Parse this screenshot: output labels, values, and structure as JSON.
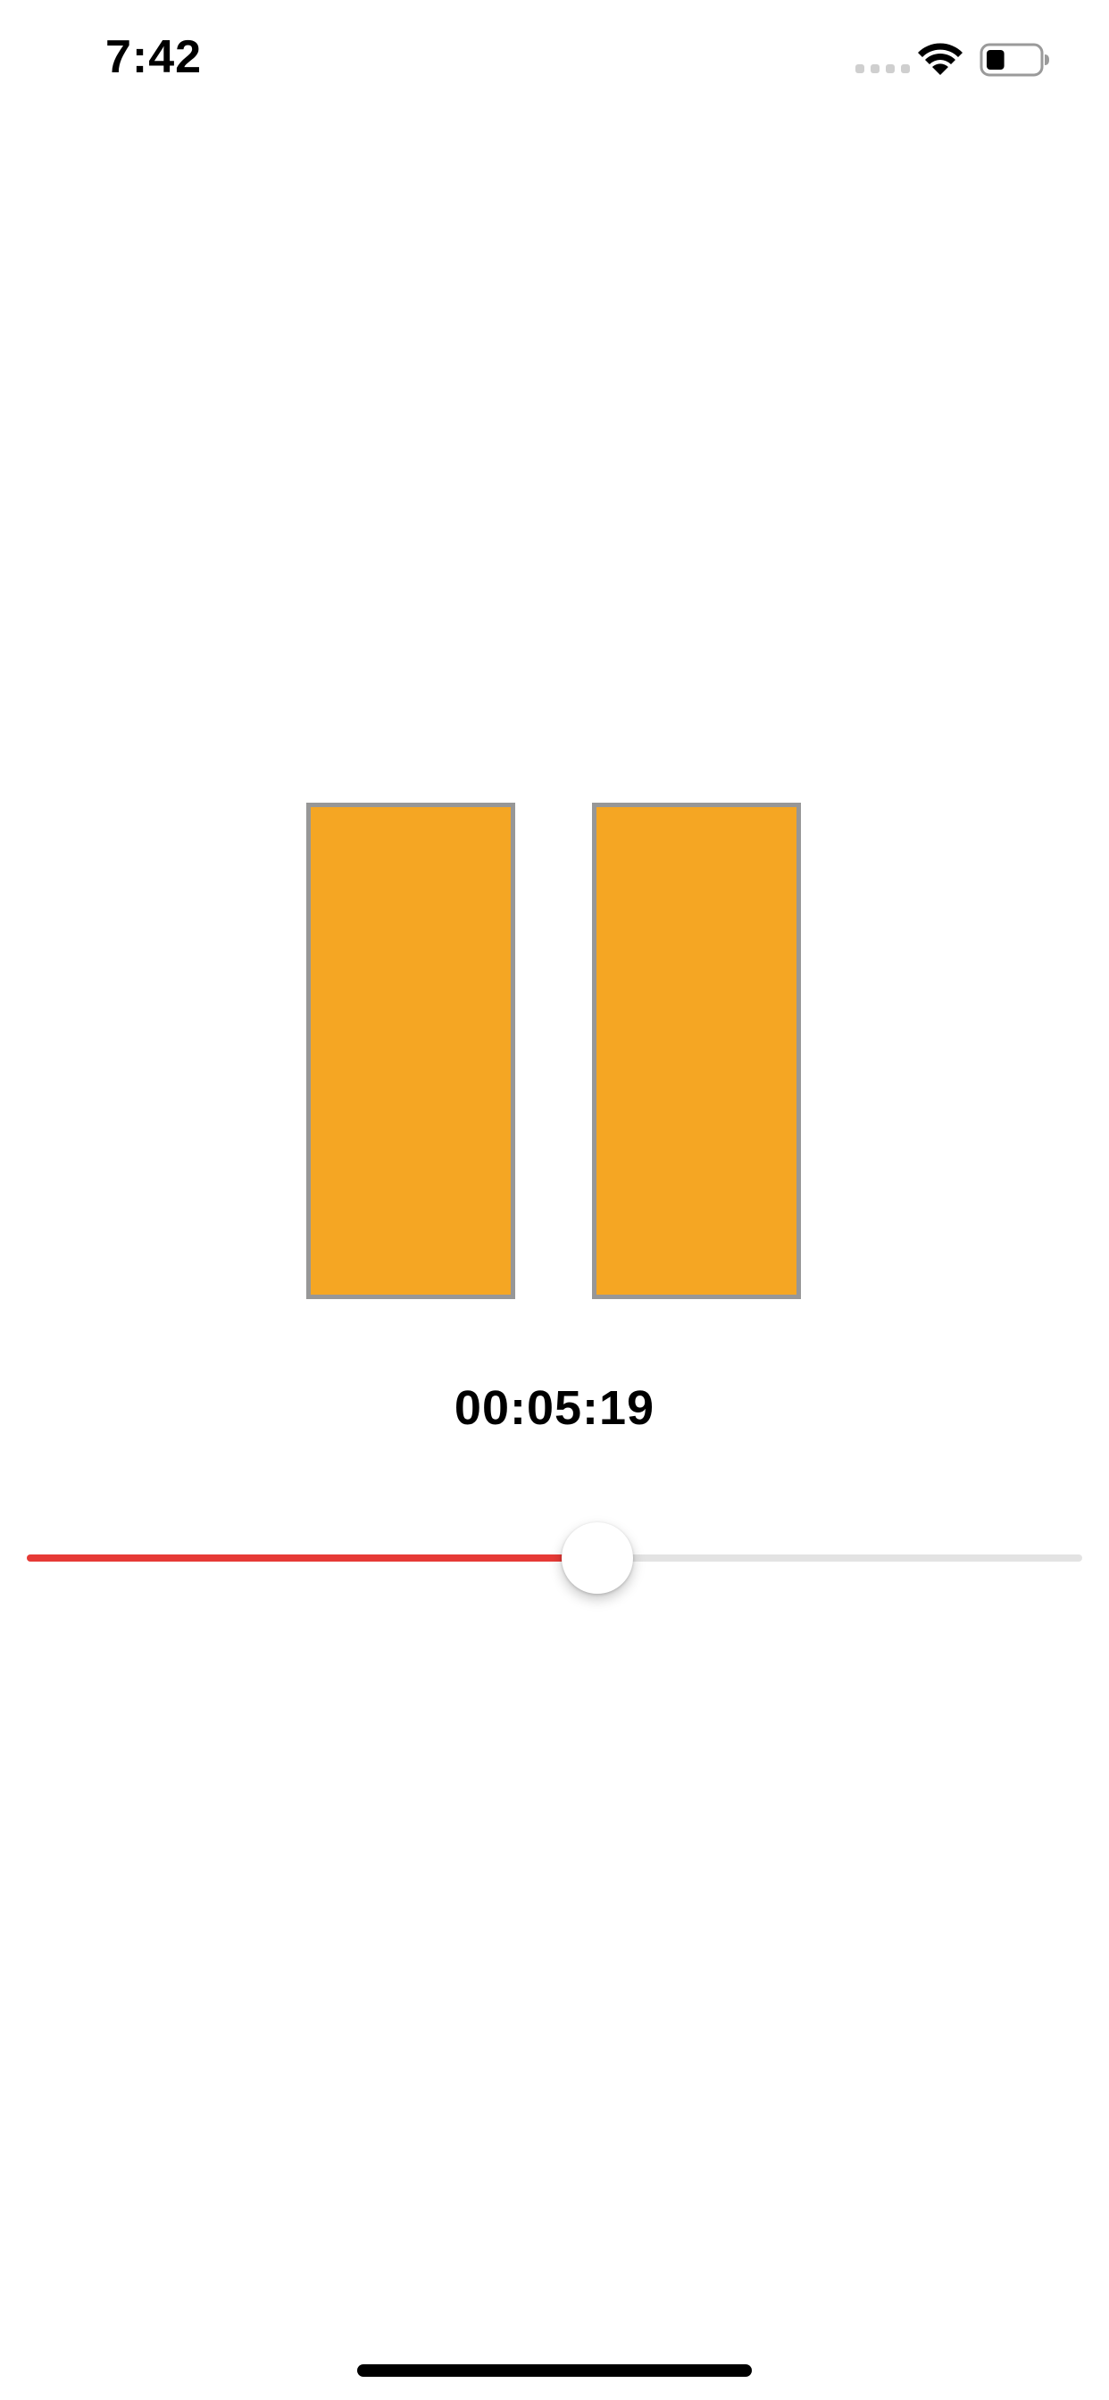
{
  "status_bar": {
    "time": "7:42",
    "icons": [
      "signal-dots-icon",
      "wifi-icon",
      "battery-icon"
    ],
    "battery_level": 0.35
  },
  "player": {
    "control_icon": "pause-icon",
    "control_color": "#f5a623",
    "control_border_color": "#979797",
    "elapsed": "00:05:19",
    "progress": 0.541,
    "progress_color": "#e63a36",
    "track_color": "#e3e3e3"
  }
}
